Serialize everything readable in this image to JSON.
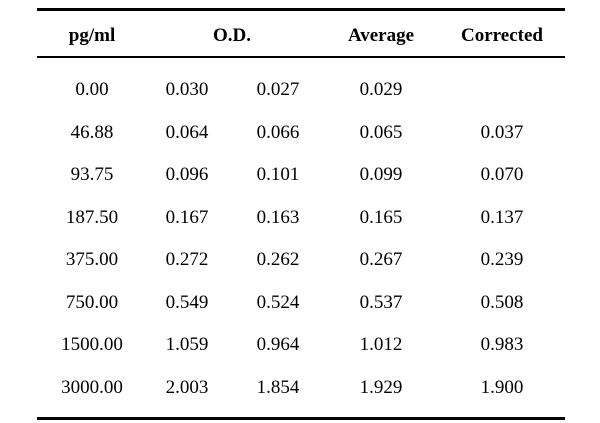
{
  "table": {
    "headers": {
      "pg": "pg/ml",
      "od": "O.D.",
      "average": "Average",
      "corrected": "Corrected"
    },
    "rows": [
      {
        "pg": "0.00",
        "od1": "0.030",
        "od2": "0.027",
        "average": "0.029",
        "corrected": ""
      },
      {
        "pg": "46.88",
        "od1": "0.064",
        "od2": "0.066",
        "average": "0.065",
        "corrected": "0.037"
      },
      {
        "pg": "93.75",
        "od1": "0.096",
        "od2": "0.101",
        "average": "0.099",
        "corrected": "0.070"
      },
      {
        "pg": "187.50",
        "od1": "0.167",
        "od2": "0.163",
        "average": "0.165",
        "corrected": "0.137"
      },
      {
        "pg": "375.00",
        "od1": "0.272",
        "od2": "0.262",
        "average": "0.267",
        "corrected": "0.239"
      },
      {
        "pg": "750.00",
        "od1": "0.549",
        "od2": "0.524",
        "average": "0.537",
        "corrected": "0.508"
      },
      {
        "pg": "1500.00",
        "od1": "1.059",
        "od2": "0.964",
        "average": "1.012",
        "corrected": "0.983"
      },
      {
        "pg": "3000.00",
        "od1": "2.003",
        "od2": "1.854",
        "average": "1.929",
        "corrected": "1.900"
      }
    ]
  }
}
